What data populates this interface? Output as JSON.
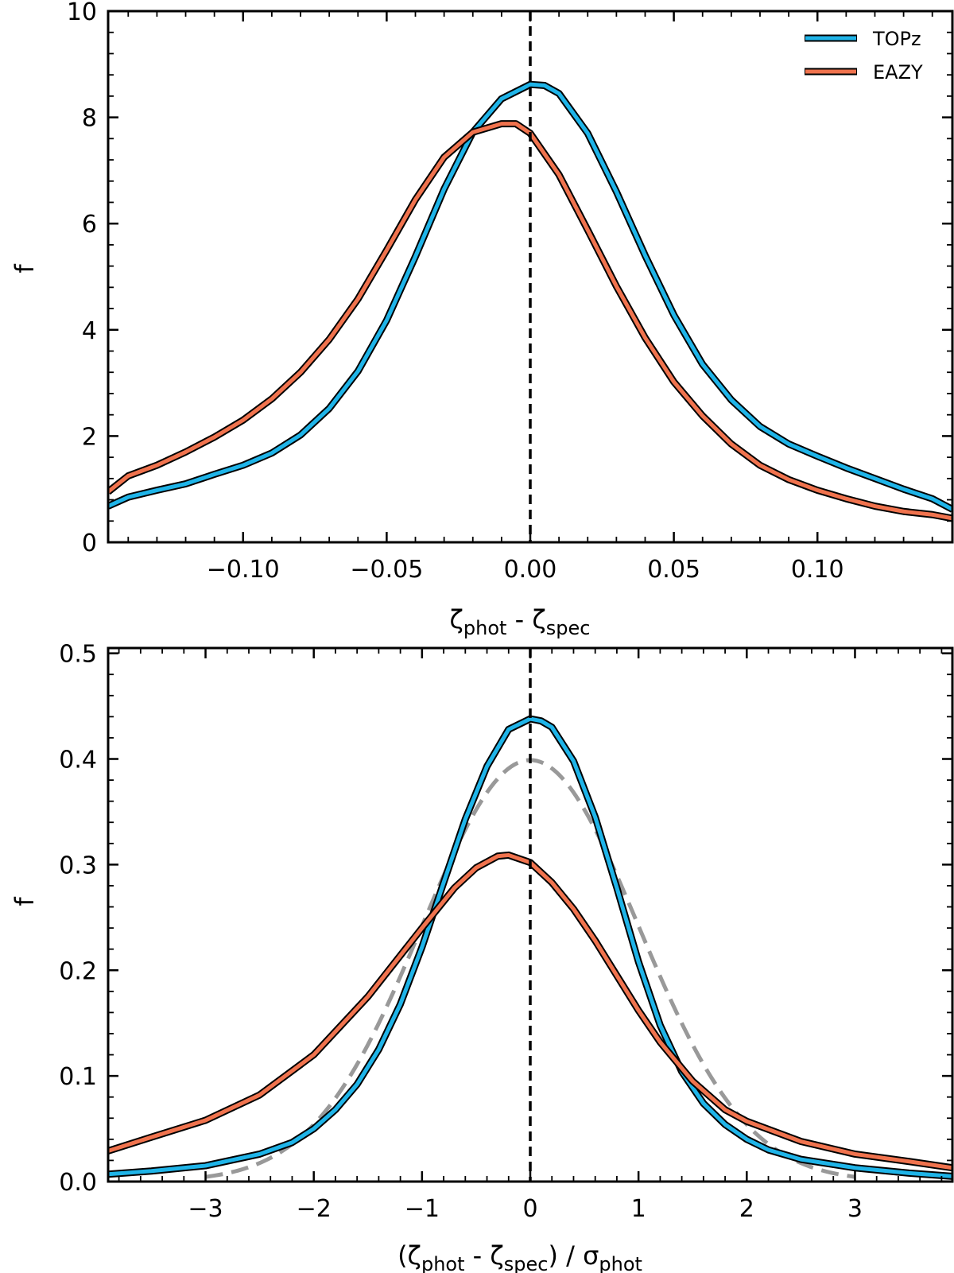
{
  "chart_data": [
    {
      "type": "line",
      "panel": "top",
      "xlabel": {
        "main": "ζ",
        "sub1": "phot",
        "mid": " - ζ",
        "sub2": "spec"
      },
      "ylabel": "f",
      "xlim": [
        -0.147,
        0.147
      ],
      "ylim": [
        0,
        10
      ],
      "xticks": [
        -0.1,
        -0.05,
        0.0,
        0.05,
        0.1
      ],
      "xtick_labels": [
        "−0.10",
        "−0.05",
        "0.00",
        "0.05",
        "0.10"
      ],
      "yticks": [
        0,
        2,
        4,
        6,
        8,
        10
      ],
      "ytick_labels": [
        "0",
        "2",
        "4",
        "6",
        "8",
        "10"
      ],
      "vline": {
        "x": 0,
        "style": "dashed",
        "color": "#000000"
      },
      "legend": {
        "placement": "top-right",
        "entries": [
          "TOPz",
          "EAZY"
        ]
      },
      "series": [
        {
          "name": "TOPz",
          "color": "#1fb4e8",
          "x": [
            -0.147,
            -0.14,
            -0.13,
            -0.12,
            -0.11,
            -0.1,
            -0.09,
            -0.08,
            -0.07,
            -0.06,
            -0.05,
            -0.04,
            -0.03,
            -0.02,
            -0.01,
            0.0,
            0.005,
            0.01,
            0.02,
            0.03,
            0.04,
            0.05,
            0.06,
            0.07,
            0.08,
            0.09,
            0.1,
            0.11,
            0.12,
            0.13,
            0.14,
            0.147
          ],
          "y": [
            0.68,
            0.85,
            0.98,
            1.1,
            1.28,
            1.45,
            1.68,
            2.02,
            2.52,
            3.22,
            4.18,
            5.38,
            6.65,
            7.72,
            8.35,
            8.62,
            8.6,
            8.45,
            7.7,
            6.6,
            5.4,
            4.28,
            3.35,
            2.68,
            2.18,
            1.85,
            1.62,
            1.4,
            1.2,
            1.0,
            0.82,
            0.62
          ]
        },
        {
          "name": "EAZY",
          "color": "#f0734e",
          "x": [
            -0.147,
            -0.14,
            -0.13,
            -0.12,
            -0.11,
            -0.1,
            -0.09,
            -0.08,
            -0.07,
            -0.06,
            -0.05,
            -0.04,
            -0.03,
            -0.02,
            -0.01,
            -0.005,
            0.0,
            0.01,
            0.02,
            0.03,
            0.04,
            0.05,
            0.06,
            0.07,
            0.08,
            0.09,
            0.1,
            0.11,
            0.12,
            0.13,
            0.14,
            0.147
          ],
          "y": [
            0.95,
            1.25,
            1.45,
            1.7,
            1.98,
            2.3,
            2.7,
            3.2,
            3.82,
            4.58,
            5.5,
            6.45,
            7.25,
            7.72,
            7.88,
            7.88,
            7.7,
            6.92,
            5.88,
            4.82,
            3.85,
            3.02,
            2.38,
            1.85,
            1.45,
            1.18,
            0.98,
            0.82,
            0.68,
            0.58,
            0.52,
            0.45
          ]
        }
      ]
    },
    {
      "type": "line",
      "panel": "bottom",
      "xlabel": {
        "open": "(ζ",
        "sub1": "phot",
        "mid": " - ζ",
        "sub2": "spec",
        "close": ") / σ",
        "sub3": "phot"
      },
      "ylabel": "f",
      "xlim": [
        -3.9,
        3.9
      ],
      "ylim": [
        0,
        0.505
      ],
      "xticks": [
        -3,
        -2,
        -1,
        0,
        1,
        2,
        3
      ],
      "xtick_labels": [
        "−3",
        "−2",
        "−1",
        "0",
        "1",
        "2",
        "3"
      ],
      "yticks": [
        0,
        0.1,
        0.2,
        0.3,
        0.4,
        0.5
      ],
      "ytick_labels": [
        "0.0",
        "0.1",
        "0.2",
        "0.3",
        "0.4",
        "0.5"
      ],
      "vline": {
        "x": 0,
        "style": "dashed",
        "color": "#000000"
      },
      "reference_curve": {
        "name": "unit Gaussian",
        "mean": 0,
        "sigma": 1,
        "x_range": [
          -3,
          3
        ],
        "style": "dashed",
        "color": "#999999"
      },
      "series": [
        {
          "name": "TOPz",
          "color": "#1fb4e8",
          "x": [
            -3.9,
            -3.5,
            -3.0,
            -2.5,
            -2.2,
            -2.0,
            -1.8,
            -1.6,
            -1.4,
            -1.2,
            -1.0,
            -0.8,
            -0.6,
            -0.4,
            -0.2,
            0.0,
            0.1,
            0.2,
            0.4,
            0.6,
            0.8,
            1.0,
            1.2,
            1.4,
            1.6,
            1.8,
            2.0,
            2.2,
            2.5,
            3.0,
            3.5,
            3.9
          ],
          "y": [
            0.007,
            0.01,
            0.015,
            0.026,
            0.037,
            0.05,
            0.068,
            0.092,
            0.125,
            0.168,
            0.222,
            0.283,
            0.343,
            0.393,
            0.428,
            0.438,
            0.436,
            0.43,
            0.398,
            0.345,
            0.278,
            0.208,
            0.148,
            0.104,
            0.074,
            0.054,
            0.04,
            0.03,
            0.021,
            0.013,
            0.008,
            0.005
          ]
        },
        {
          "name": "EAZY",
          "color": "#f0734e",
          "x": [
            -3.9,
            -3.5,
            -3.0,
            -2.5,
            -2.0,
            -1.5,
            -1.0,
            -0.7,
            -0.5,
            -0.3,
            -0.2,
            0.0,
            0.2,
            0.4,
            0.6,
            0.8,
            1.0,
            1.2,
            1.5,
            1.8,
            2.0,
            2.5,
            3.0,
            3.5,
            3.9
          ],
          "y": [
            0.029,
            0.042,
            0.058,
            0.082,
            0.12,
            0.175,
            0.24,
            0.278,
            0.297,
            0.308,
            0.309,
            0.302,
            0.283,
            0.258,
            0.228,
            0.195,
            0.162,
            0.132,
            0.095,
            0.068,
            0.057,
            0.038,
            0.026,
            0.019,
            0.013
          ]
        }
      ]
    }
  ]
}
